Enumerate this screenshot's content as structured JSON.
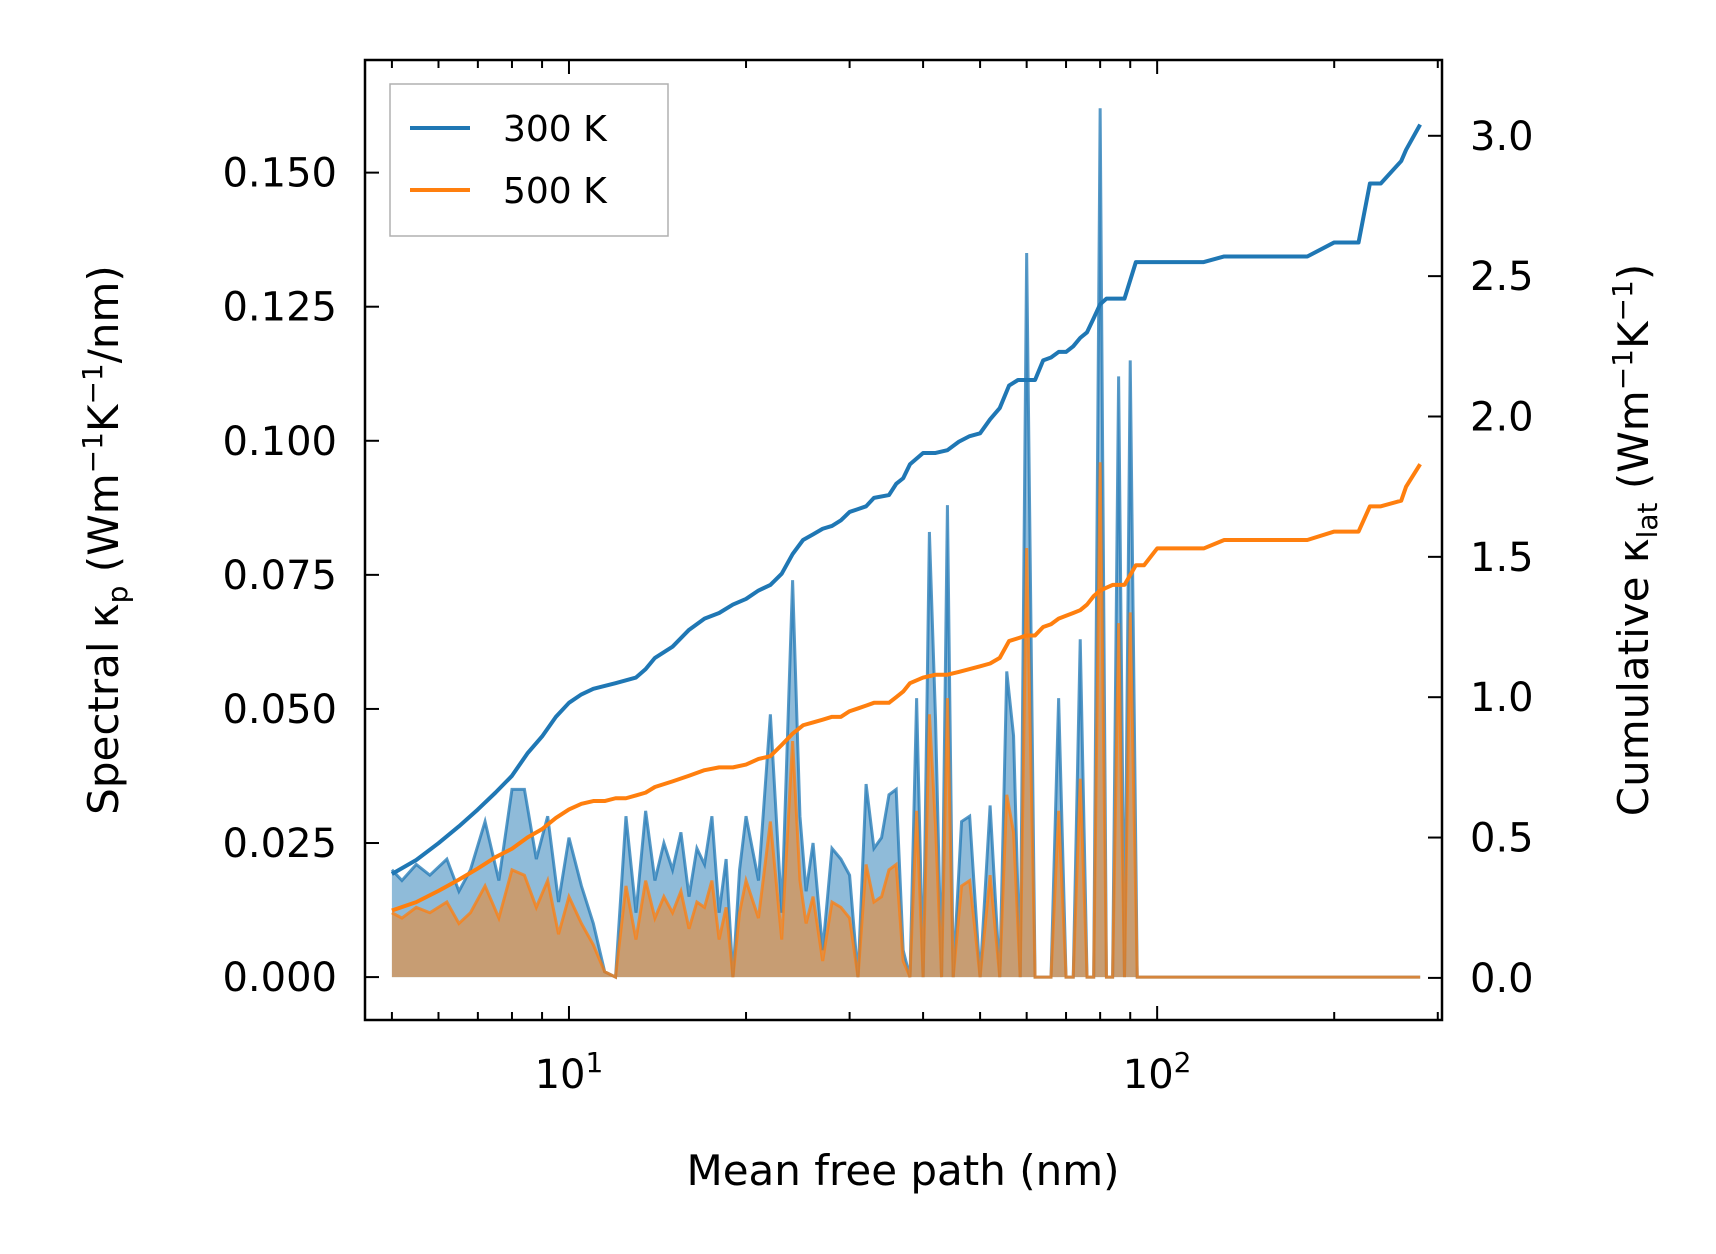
{
  "chart_data": {
    "type": "line",
    "x_scale": "log",
    "xlabel": "Mean free path (nm)",
    "ylabel_left_parts": [
      "Spectral κ",
      "p",
      " (Wm",
      "−1",
      "K",
      "−1",
      "/nm)"
    ],
    "ylabel_right_parts": [
      "Cumulative κ",
      "lat",
      " (Wm",
      "−1",
      "K",
      "−1",
      ")"
    ],
    "xlim": [
      4.5,
      305
    ],
    "ylim_left": [
      -0.008,
      0.171
    ],
    "ylim_right": [
      -0.15,
      3.27
    ],
    "x_major_ticks": [
      {
        "base": "10",
        "exp": "1",
        "value": 10
      },
      {
        "base": "10",
        "exp": "2",
        "value": 100
      }
    ],
    "y_left_ticks": [
      {
        "value": 0.0,
        "label": "0.000"
      },
      {
        "value": 0.025,
        "label": "0.025"
      },
      {
        "value": 0.05,
        "label": "0.050"
      },
      {
        "value": 0.075,
        "label": "0.075"
      },
      {
        "value": 0.1,
        "label": "0.100"
      },
      {
        "value": 0.125,
        "label": "0.125"
      },
      {
        "value": 0.15,
        "label": "0.150"
      }
    ],
    "y_right_ticks": [
      {
        "value": 0.0,
        "label": "0.0"
      },
      {
        "value": 0.5,
        "label": "0.5"
      },
      {
        "value": 1.0,
        "label": "1.0"
      },
      {
        "value": 1.5,
        "label": "1.5"
      },
      {
        "value": 2.0,
        "label": "2.0"
      },
      {
        "value": 2.5,
        "label": "2.5"
      },
      {
        "value": 3.0,
        "label": "3.0"
      }
    ],
    "legend": {
      "position": "top-left",
      "entries": [
        {
          "name": "300 K",
          "color": "#1f77b4"
        },
        {
          "name": "500 K",
          "color": "#ff7f0e"
        }
      ]
    },
    "series": [
      {
        "name": "300 K spectral",
        "axis": "left",
        "kind": "filled-line",
        "color": "#1f77b4",
        "x": [
          5.0,
          5.2,
          5.5,
          5.8,
          6.2,
          6.5,
          6.8,
          7.2,
          7.6,
          8.0,
          8.4,
          8.8,
          9.2,
          9.6,
          10.0,
          10.5,
          11.0,
          11.5,
          12.0,
          12.5,
          13.0,
          13.5,
          14.0,
          14.5,
          15.0,
          15.5,
          16.0,
          16.5,
          17.0,
          17.5,
          18.0,
          18.5,
          19.0,
          19.5,
          20.0,
          21.0,
          22.0,
          23.0,
          24.0,
          24.7,
          25.3,
          26.0,
          27.0,
          28.0,
          29.0,
          30.0,
          31.0,
          32.0,
          33.0,
          34.0,
          35.0,
          36.0,
          37.0,
          38.0,
          39.0,
          40.0,
          41.0,
          42.0,
          43.0,
          44.0,
          45.0,
          46.5,
          48.0,
          50.0,
          52.0,
          54.0,
          55.5,
          57.0,
          58.5,
          60.0,
          62.0,
          64.0,
          66.0,
          68.0,
          70.0,
          72.0,
          74.0,
          76.0,
          78.0,
          80.0,
          82.0,
          84.0,
          86.0,
          88.0,
          90.0,
          92.5,
          95.0,
          97.0,
          100.0,
          110.0,
          120.0,
          125.0,
          130.0,
          140.0,
          160.0,
          175.0,
          180.0,
          185.0,
          200.0,
          215.0,
          220.0,
          225.0,
          240.0,
          255.0,
          260.0,
          265.0,
          270.0,
          275.0,
          280.0
        ],
        "values": [
          0.02,
          0.018,
          0.021,
          0.019,
          0.022,
          0.016,
          0.02,
          0.029,
          0.018,
          0.035,
          0.035,
          0.022,
          0.03,
          0.014,
          0.026,
          0.017,
          0.01,
          0.001,
          0.0,
          0.03,
          0.012,
          0.031,
          0.018,
          0.025,
          0.02,
          0.027,
          0.015,
          0.024,
          0.021,
          0.03,
          0.012,
          0.022,
          0.0,
          0.02,
          0.03,
          0.018,
          0.049,
          0.012,
          0.074,
          0.03,
          0.016,
          0.025,
          0.005,
          0.024,
          0.022,
          0.019,
          0.0,
          0.036,
          0.024,
          0.026,
          0.034,
          0.035,
          0.005,
          0.0,
          0.052,
          0.0,
          0.083,
          0.048,
          0.0,
          0.088,
          0.0,
          0.029,
          0.03,
          0.0,
          0.032,
          0.0,
          0.057,
          0.045,
          0.0,
          0.135,
          0.0,
          0.0,
          0.0,
          0.052,
          0.0,
          0.0,
          0.063,
          0.0,
          0.0,
          0.162,
          0.0,
          0.0,
          0.112,
          0.0,
          0.115,
          0.0,
          0.0,
          0.0,
          0.0,
          0.0,
          0.0,
          0.0,
          0.0,
          0.0,
          0.0,
          0.0,
          0.0,
          0.0,
          0.0,
          0.0,
          0.0,
          0.0,
          0.0,
          0.0,
          0.0,
          0.0,
          0.0,
          0.0,
          0.0
        ]
      },
      {
        "name": "500 K spectral",
        "axis": "left",
        "kind": "filled-line",
        "color": "#ff7f0e",
        "x": [
          5.0,
          5.2,
          5.5,
          5.8,
          6.2,
          6.5,
          6.8,
          7.2,
          7.6,
          8.0,
          8.4,
          8.8,
          9.2,
          9.6,
          10.0,
          10.5,
          11.0,
          11.5,
          12.0,
          12.5,
          13.0,
          13.5,
          14.0,
          14.5,
          15.0,
          15.5,
          16.0,
          16.5,
          17.0,
          17.5,
          18.0,
          18.5,
          19.0,
          19.5,
          20.0,
          21.0,
          22.0,
          23.0,
          24.0,
          24.7,
          25.3,
          26.0,
          27.0,
          28.0,
          29.0,
          30.0,
          31.0,
          32.0,
          33.0,
          34.0,
          35.0,
          36.0,
          37.0,
          38.0,
          39.0,
          40.0,
          41.0,
          42.0,
          43.0,
          44.0,
          45.0,
          46.5,
          48.0,
          50.0,
          52.0,
          54.0,
          55.5,
          57.0,
          58.5,
          60.0,
          62.0,
          64.0,
          66.0,
          68.0,
          70.0,
          72.0,
          74.0,
          76.0,
          78.0,
          80.0,
          82.0,
          84.0,
          86.0,
          88.0,
          90.0,
          92.5,
          95.0,
          97.0,
          100.0,
          110.0,
          120.0,
          125.0,
          130.0,
          140.0,
          160.0,
          175.0,
          180.0,
          185.0,
          200.0,
          215.0,
          220.0,
          225.0,
          240.0,
          255.0,
          260.0,
          265.0,
          270.0,
          275.0,
          280.0
        ],
        "values": [
          0.012,
          0.011,
          0.013,
          0.012,
          0.014,
          0.01,
          0.012,
          0.017,
          0.011,
          0.02,
          0.019,
          0.013,
          0.018,
          0.008,
          0.015,
          0.01,
          0.006,
          0.001,
          0.0,
          0.017,
          0.007,
          0.018,
          0.011,
          0.015,
          0.012,
          0.016,
          0.009,
          0.014,
          0.013,
          0.018,
          0.007,
          0.013,
          0.0,
          0.012,
          0.018,
          0.011,
          0.029,
          0.007,
          0.044,
          0.018,
          0.01,
          0.015,
          0.003,
          0.014,
          0.013,
          0.011,
          0.0,
          0.021,
          0.014,
          0.015,
          0.02,
          0.021,
          0.003,
          0.0,
          0.031,
          0.0,
          0.049,
          0.028,
          0.0,
          0.052,
          0.0,
          0.017,
          0.018,
          0.0,
          0.019,
          0.0,
          0.034,
          0.027,
          0.0,
          0.08,
          0.0,
          0.0,
          0.0,
          0.031,
          0.0,
          0.0,
          0.037,
          0.0,
          0.0,
          0.096,
          0.0,
          0.0,
          0.066,
          0.0,
          0.068,
          0.0,
          0.0,
          0.0,
          0.0,
          0.0,
          0.0,
          0.0,
          0.0,
          0.0,
          0.0,
          0.0,
          0.0,
          0.0,
          0.0,
          0.0,
          0.0,
          0.0,
          0.0,
          0.0,
          0.0,
          0.0,
          0.0,
          0.0,
          0.0
        ]
      },
      {
        "name": "300 K",
        "axis": "right",
        "kind": "line",
        "color": "#1f77b4",
        "x": [
          5.0,
          5.5,
          6.0,
          6.5,
          7.0,
          7.5,
          8.0,
          8.5,
          9.0,
          9.5,
          10.0,
          10.5,
          11.0,
          11.5,
          12.0,
          12.5,
          13.0,
          13.5,
          14.0,
          15.0,
          16.0,
          17.0,
          18.0,
          19.0,
          20.0,
          21.0,
          22.0,
          23.0,
          24.0,
          25.0,
          26.0,
          27.0,
          28.0,
          29.0,
          30.0,
          31.0,
          32.0,
          33.0,
          35.0,
          36.0,
          37.0,
          38.0,
          40.0,
          42.0,
          44.0,
          46.0,
          48.0,
          50.0,
          52.0,
          54.0,
          56.0,
          58.0,
          60.0,
          62.0,
          64.0,
          66.0,
          68.0,
          70.0,
          72.0,
          74.0,
          76.0,
          78.0,
          80.0,
          82.0,
          84.0,
          88.0,
          92.0,
          95.0,
          100.0,
          120.0,
          130.0,
          150.0,
          180.0,
          200.0,
          220.0,
          230.0,
          240.0,
          260.0,
          265.0,
          280.0
        ],
        "values": [
          0.37,
          0.42,
          0.48,
          0.54,
          0.6,
          0.66,
          0.72,
          0.8,
          0.86,
          0.93,
          0.98,
          1.01,
          1.03,
          1.04,
          1.05,
          1.06,
          1.07,
          1.1,
          1.14,
          1.18,
          1.24,
          1.28,
          1.3,
          1.33,
          1.35,
          1.38,
          1.4,
          1.44,
          1.51,
          1.56,
          1.58,
          1.6,
          1.61,
          1.63,
          1.66,
          1.67,
          1.68,
          1.71,
          1.72,
          1.76,
          1.78,
          1.83,
          1.87,
          1.87,
          1.88,
          1.91,
          1.93,
          1.94,
          1.99,
          2.03,
          2.11,
          2.13,
          2.13,
          2.13,
          2.2,
          2.21,
          2.23,
          2.23,
          2.25,
          2.28,
          2.3,
          2.35,
          2.4,
          2.42,
          2.42,
          2.42,
          2.55,
          2.55,
          2.55,
          2.55,
          2.57,
          2.57,
          2.57,
          2.62,
          2.62,
          2.83,
          2.83,
          2.91,
          2.95,
          3.04
        ]
      },
      {
        "name": "500 K",
        "axis": "right",
        "kind": "line",
        "color": "#ff7f0e",
        "x": [
          5.0,
          5.5,
          6.0,
          6.5,
          7.0,
          7.5,
          8.0,
          8.5,
          9.0,
          9.5,
          10.0,
          10.5,
          11.0,
          11.5,
          12.0,
          12.5,
          13.0,
          13.5,
          14.0,
          15.0,
          16.0,
          17.0,
          18.0,
          19.0,
          20.0,
          21.0,
          22.0,
          23.0,
          24.0,
          25.0,
          26.0,
          27.0,
          28.0,
          29.0,
          30.0,
          31.0,
          32.0,
          33.0,
          35.0,
          36.0,
          37.0,
          38.0,
          40.0,
          42.0,
          44.0,
          46.0,
          48.0,
          50.0,
          52.0,
          54.0,
          56.0,
          58.0,
          60.0,
          62.0,
          64.0,
          66.0,
          68.0,
          70.0,
          72.0,
          74.0,
          76.0,
          78.0,
          80.0,
          82.0,
          84.0,
          88.0,
          92.0,
          95.0,
          100.0,
          120.0,
          130.0,
          150.0,
          180.0,
          200.0,
          220.0,
          230.0,
          240.0,
          260.0,
          265.0,
          280.0
        ],
        "values": [
          0.24,
          0.27,
          0.31,
          0.35,
          0.39,
          0.43,
          0.46,
          0.5,
          0.53,
          0.57,
          0.6,
          0.62,
          0.63,
          0.63,
          0.64,
          0.64,
          0.65,
          0.66,
          0.68,
          0.7,
          0.72,
          0.74,
          0.75,
          0.75,
          0.76,
          0.78,
          0.79,
          0.83,
          0.87,
          0.9,
          0.91,
          0.92,
          0.93,
          0.93,
          0.95,
          0.96,
          0.97,
          0.98,
          0.98,
          1.0,
          1.02,
          1.05,
          1.07,
          1.08,
          1.08,
          1.09,
          1.1,
          1.11,
          1.12,
          1.14,
          1.2,
          1.21,
          1.22,
          1.22,
          1.25,
          1.26,
          1.28,
          1.29,
          1.3,
          1.31,
          1.33,
          1.36,
          1.38,
          1.39,
          1.4,
          1.4,
          1.47,
          1.47,
          1.53,
          1.53,
          1.56,
          1.56,
          1.56,
          1.59,
          1.59,
          1.68,
          1.68,
          1.7,
          1.75,
          1.83
        ]
      }
    ]
  }
}
